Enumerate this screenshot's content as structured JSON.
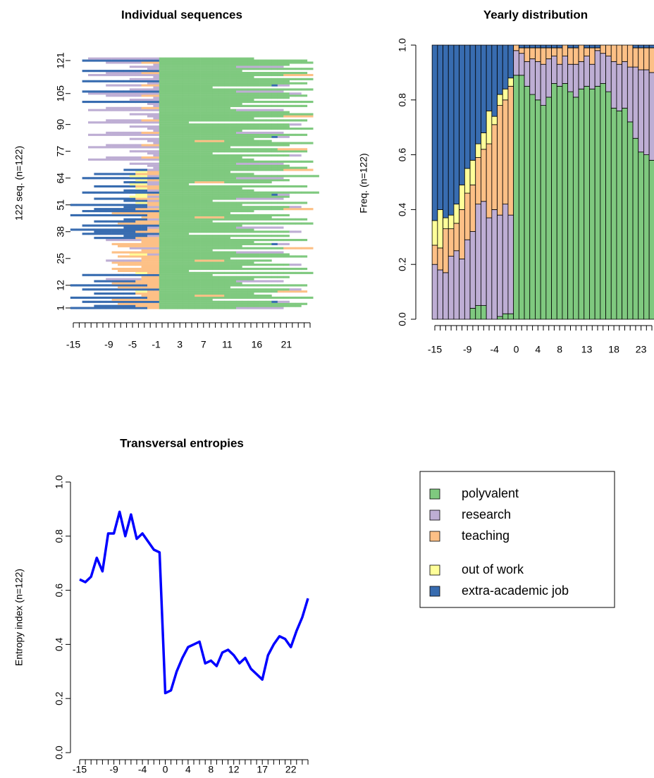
{
  "chart_data": [
    {
      "type": "sequence",
      "title": "Individual sequences",
      "ylabel": "122 seq. (n=122)",
      "categories": [
        "-15",
        null,
        null,
        null,
        null,
        null,
        "-9",
        null,
        null,
        null,
        "-5",
        null,
        null,
        null,
        "-1",
        null,
        null,
        null,
        "3",
        null,
        null,
        null,
        "7",
        null,
        null,
        null,
        "11",
        null,
        null,
        null,
        null,
        "16",
        null,
        null,
        null,
        null,
        "21",
        null,
        null,
        null,
        null
      ],
      "ylim": [
        1,
        122
      ],
      "yticks": [
        1,
        12,
        25,
        38,
        51,
        64,
        77,
        90,
        105,
        121
      ],
      "sequences": [
        "444444444444422000000000000011111111",
        "....44444442222000000000000000000000000",
        "........22222220000000000000000000000000",
        "..44444444444440000000000000000000411",
        ".......22222222000000000",
        "44444444444442200000000000000000000000000",
        "............2220000002222200000000",
        "....444444422220000000000000000",
        "...........33220000000000000000000022222",
        "..4444444444444000000000000000000000011",
        "........2222222000000000000",
        "4444444444444220000000000000000000000000",
        ".......2222222200000000000000",
        "....44444442222000000000000011111111",
        "......1111112220000000000000000",
        "............2220000000000000000000000",
        "..4444444444444000000000",
        "...........332200000000000000000000000000",
        "........222222200000",
        ".......222222220000000000000000000000000",
        "............22200000000000000",
        "........2222222000000000000000000000011",
        ".......222222220000000000000000",
        "......1111112220000002222200000000",
        "............222000000000000",
        "........22222220000000000000000000000000",
        "..........333110000000000000000000000",
        ".......22222222000000000000011111111",
        "............222000000000",
        "..........1111100000000000000000000022222",
        "........222222200000000000000",
        ".......222222220000000000000000000411",
        "............2220000000000000000",
        "......1111112220000000000000000000000000",
        "....44444442222000000000000",
        ".........4444110000000000000000000000",
        "..444444444444400000",
        "....44444442222000000000000000000000011",
        "4444444444444220000000000000000",
        ".........444411000000000000011111111",
        "..444444444444400000000000000",
        "........222222200000000000000000000000000",
        "....44444442222000000000",
        ".........4444110000000000000000000000000",
        "............2220000002222200000000",
        "4444444444444220000000000000000000000",
        ".......22222222000000000000",
        "..44444444444440000000000000000",
        "....4444444222200000000000000000000022222",
        ".........444411000000000000000000000011",
        "44444444444442200000000000000",
        "...........33220000000000000000000000000",
        ".........444411000000000",
        "....44444442222000000000000011111111",
        "..........333110000000000000000000000",
        "...........33220000000000000000000411",
        "..4444444444444000000000000000000000000000",
        ".........4444110000000000000000",
        "...........332200000000000000",
        "....444444422220000000000000000000000000",
        "..........3331100000",
        ".........4444110000002222200000000",
        "...........33220000000000000000000000",
        "..4444444444444000000000000011111111",
        "..........33311000000000000000000000000000",
        "....444444422220000000000000000",
        "...........3322000000000000",
        ".........44441100000000000000000000022222",
        "..............10000000000000000000000000",
        ".............110000000000000000000000",
        "..........11111000000000000011111111",
        "...............00000000000000000000000000",
        "...1111111111110000000000000000",
        "......11111122200000000000000",
        "..............1000000000000000000000011",
        ".............11000000000",
        "..........111110000000000000000000000000",
        "...............0000000000000000000022222",
        "...111111111111000000000000",
        "......1111112220000000000000000000000",
        "..............100000000000000000000000000",
        ".............110000002222200000000",
        "..........111110000000000000000",
        "...............0000000000000000000411",
        "...1111111111110000000000000000000000000",
        "......111111222000000000000011111111",
        "..............100000000000000",
        ".............1100000000000000000000000000",
        "..........111110000000000000000000000",
        "...............000000000000000000000011",
        "...11111111111100000",
        "......1111112220000000000000000000000000",
        "..............10000000000000000",
        ".............1100000000000000000000022222",
        "..........1111100000000000000000000000000",
        "...............0000000000000000000000",
        "...111111111111000000000000011111111",
        "......111111222000000000000",
        "..............10000000000000000000000000",
        ".............1100000000000000",
        "..444444444444400000000000000000000000000",
        "..........111110000000000000000",
        "..............10000000000000000000000",
        "......1111112220000000000000000000000000",
        "...111111111111000000000000000000000011",
        "..4444444444444000000000000011111111",
        "..........1111100000000000000000000000000",
        "..............1000000000",
        "......1111112220000000000000000000411",
        ".............110000000000000000000000000",
        "..44444444444440000000000000000000000",
        "..........1111100000000000000000000000000",
        "..............10000000000000000",
        "...11111111111100000000000000000000022222",
        "......1111112220000000000000000000000000",
        "..444444444444400000000000000",
        ".............1100000000000000000000000000",
        "..........11111000000000000011111111",
        "..............10000000000000000000000",
        "......11111122200000000000000000000000000",
        "..44444444444440000000000000000000000000",
        "...1111111111110000000000000000"
      ]
    },
    {
      "type": "bar",
      "stacked": true,
      "title": "Yearly distribution",
      "ylabel": "Freq. (n=122)",
      "categories": [
        "-15",
        null,
        null,
        null,
        null,
        null,
        "-9",
        null,
        null,
        null,
        null,
        "-4",
        null,
        null,
        null,
        "0",
        null,
        null,
        null,
        "4",
        null,
        null,
        null,
        "8",
        null,
        null,
        null,
        null,
        "13",
        null,
        null,
        null,
        null,
        "18",
        null,
        null,
        null,
        null,
        "23",
        null,
        null
      ],
      "ylim": [
        0,
        1
      ],
      "yticks": [
        {
          "value": 0,
          "label": "0.0"
        },
        0.2,
        0.4,
        0.6,
        0.8,
        {
          "value": 1,
          "label": "1.0"
        }
      ],
      "series": [
        {
          "name": "polyvalent",
          "color": "#7fc97f",
          "values": [
            0,
            0,
            0,
            0,
            0,
            0,
            0,
            0.04,
            0.05,
            0.05,
            0,
            0,
            0.01,
            0.02,
            0.02,
            0.89,
            0.89,
            0.85,
            0.82,
            0.8,
            0.78,
            0.81,
            0.86,
            0.85,
            0.86,
            0.83,
            0.81,
            0.84,
            0.85,
            0.84,
            0.85,
            0.86,
            0.83,
            0.77,
            0.76,
            0.77,
            0.72,
            0.66,
            0.61,
            0.6,
            0.58
          ]
        },
        {
          "name": "research",
          "color": "#beaed4",
          "values": [
            0.2,
            0.18,
            0.17,
            0.23,
            0.25,
            0.22,
            0.29,
            0.28,
            0.37,
            0.38,
            0.37,
            0.4,
            0.37,
            0.4,
            0.36,
            0.09,
            0.08,
            0.09,
            0.13,
            0.14,
            0.15,
            0.14,
            0.1,
            0.08,
            0.1,
            0.1,
            0.12,
            0.1,
            0.11,
            0.09,
            0.13,
            0.11,
            0.13,
            0.17,
            0.17,
            0.17,
            0.2,
            0.26,
            0.3,
            0.31,
            0.32
          ]
        },
        {
          "name": "teaching",
          "color": "#fdc086",
          "values": [
            0.07,
            0.08,
            0.16,
            0.1,
            0.1,
            0.18,
            0.17,
            0.17,
            0.17,
            0.19,
            0.27,
            0.31,
            0.4,
            0.38,
            0.47,
            0.02,
            0.02,
            0.05,
            0.04,
            0.05,
            0.06,
            0.04,
            0.03,
            0.06,
            0.04,
            0.06,
            0.06,
            0.06,
            0.03,
            0.06,
            0.01,
            0.03,
            0.04,
            0.06,
            0.07,
            0.06,
            0.08,
            0.07,
            0.08,
            0.08,
            0.09
          ]
        },
        {
          "name": "out of work",
          "color": "#ffff99",
          "values": [
            0.09,
            0.14,
            0.04,
            0.05,
            0.07,
            0.09,
            0.09,
            0.09,
            0.05,
            0.06,
            0.12,
            0.03,
            0.04,
            0.04,
            0.03,
            0,
            0,
            0,
            0,
            0,
            0,
            0,
            0,
            0,
            0,
            0,
            0,
            0,
            0,
            0,
            0,
            0,
            0,
            0,
            0,
            0,
            0,
            0,
            0,
            0,
            0
          ]
        },
        {
          "name": "extra-academic job",
          "color": "#386cb0",
          "values": [
            0.64,
            0.6,
            0.63,
            0.62,
            0.58,
            0.51,
            0.45,
            0.42,
            0.36,
            0.32,
            0.24,
            0.26,
            0.18,
            0.16,
            0.12,
            0,
            0.01,
            0.01,
            0.01,
            0.01,
            0.01,
            0.01,
            0.01,
            0.01,
            0,
            0.01,
            0.01,
            0,
            0.01,
            0.01,
            0.01,
            0,
            0,
            0,
            0,
            0,
            0,
            0.01,
            0.01,
            0.01,
            0.01
          ]
        }
      ]
    },
    {
      "type": "line",
      "title": "Transversal entropies",
      "ylabel": "Entropy index (n=122)",
      "color": "#0000ff",
      "categories": [
        "-15",
        null,
        null,
        null,
        null,
        null,
        "-9",
        null,
        null,
        null,
        null,
        "-4",
        null,
        null,
        null,
        "0",
        null,
        null,
        null,
        "4",
        null,
        null,
        null,
        "8",
        null,
        null,
        null,
        "12",
        null,
        null,
        null,
        null,
        "17",
        null,
        null,
        null,
        null,
        "22",
        null,
        null,
        null
      ],
      "ylim": [
        0,
        1
      ],
      "yticks": [
        {
          "value": 0,
          "label": "0.0"
        },
        0.2,
        0.4,
        0.6,
        0.8,
        {
          "value": 1,
          "label": "1.0"
        }
      ],
      "values": [
        0.64,
        0.63,
        0.65,
        0.72,
        0.67,
        0.81,
        0.81,
        0.89,
        0.8,
        0.88,
        0.79,
        0.81,
        0.78,
        0.75,
        0.74,
        0.22,
        0.23,
        0.3,
        0.35,
        0.39,
        0.4,
        0.41,
        0.33,
        0.34,
        0.32,
        0.37,
        0.38,
        0.36,
        0.33,
        0.35,
        0.31,
        0.29,
        0.27,
        0.36,
        0.4,
        0.43,
        0.42,
        0.39,
        0.45,
        0.5,
        0.57
      ]
    }
  ]
}
